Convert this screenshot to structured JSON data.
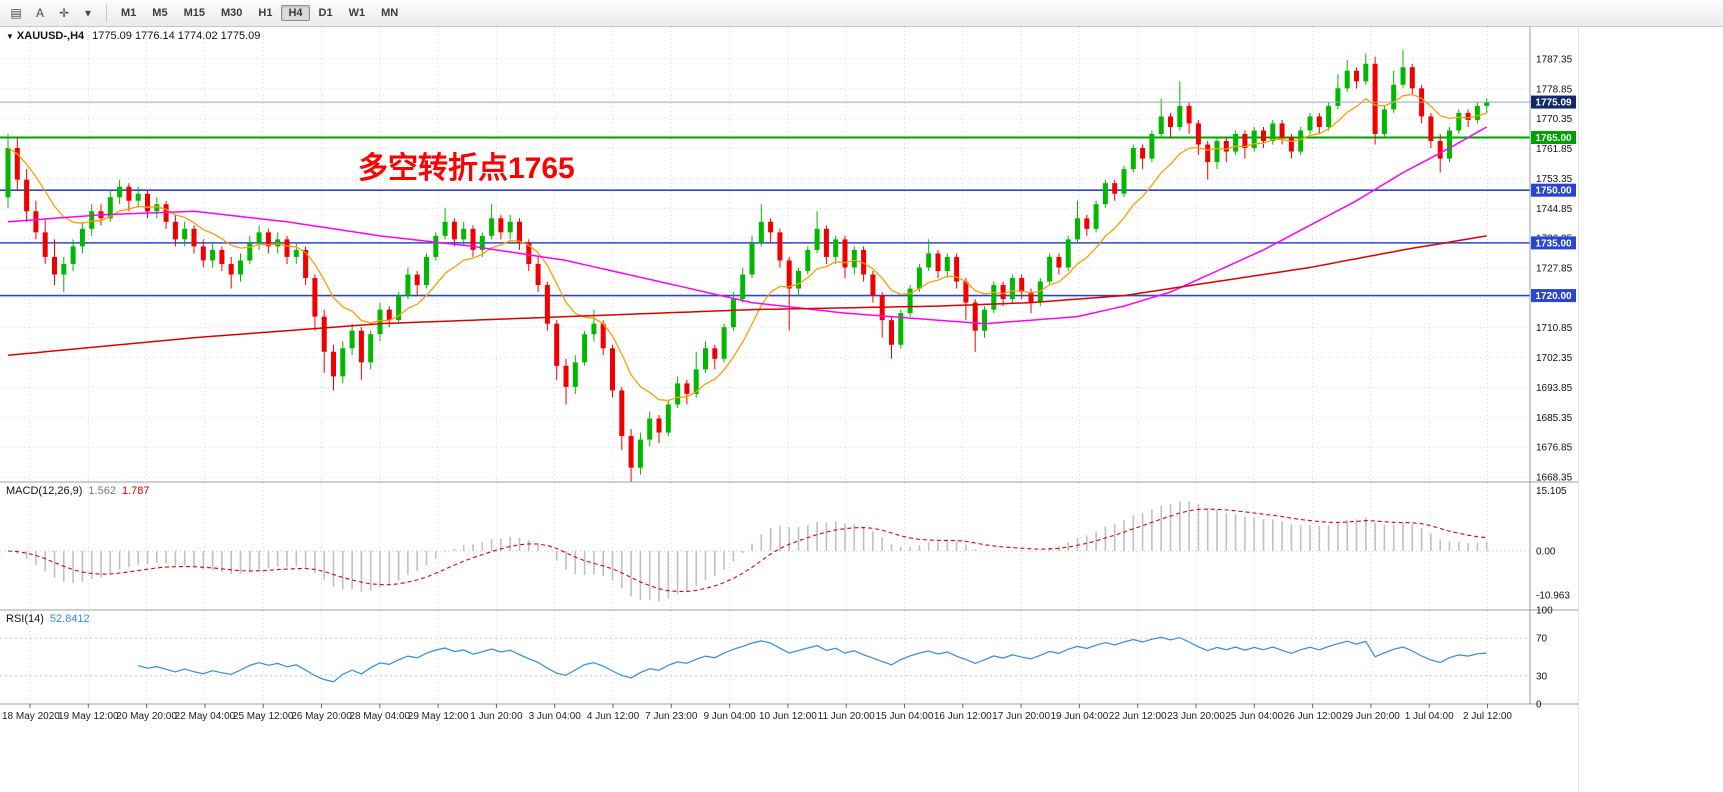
{
  "toolbar": {
    "tools": [
      {
        "name": "chart-tool",
        "glyph": "▤"
      },
      {
        "name": "text-tool",
        "glyph": "A"
      },
      {
        "name": "crosshair-tool",
        "glyph": "✛"
      },
      {
        "name": "tools-dropdown",
        "glyph": "▾"
      }
    ],
    "timeframes": [
      "M1",
      "M5",
      "M15",
      "M30",
      "H1",
      "H4",
      "D1",
      "W1",
      "MN"
    ],
    "active_timeframe": "H4"
  },
  "chart": {
    "symbol_dropdown_glyph": "▼",
    "symbol_title": "XAUUSD-,H4",
    "ohlc_text": "1775.09 1776.14 1774.02 1775.09",
    "annotation": "多空转折点1765",
    "price_axis": [
      "1787.35",
      "1778.85",
      "1770.35",
      "1761.85",
      "1753.35",
      "1744.85",
      "1736.35",
      "1727.85",
      "1719.35",
      "1710.85",
      "1702.35",
      "1693.85",
      "1685.35",
      "1676.85",
      "1668.35"
    ],
    "levels": [
      {
        "value": 1765.0,
        "label": "1765.00",
        "color": "#00a000",
        "width": 2
      },
      {
        "value": 1750.0,
        "label": "1750.00",
        "color": "#2946d2",
        "width": 1.6
      },
      {
        "value": 1735.0,
        "label": "1735.00",
        "color": "#2946d2",
        "width": 1.6
      },
      {
        "value": 1720.0,
        "label": "1720.00",
        "color": "#2946d2",
        "width": 1.6
      }
    ],
    "bid": {
      "value": 1775.09,
      "label": "1775.09",
      "line_color": "#8ea8d8",
      "tag_color": "#13286b"
    },
    "time_axis": [
      "18 May 2020",
      "19 May 12:00",
      "20 May 20:00",
      "22 May 04:00",
      "25 May 12:00",
      "26 May 20:00",
      "28 May 04:00",
      "29 May 12:00",
      "1 Jun 20:00",
      "3 Jun 04:00",
      "4 Jun 12:00",
      "7 Jun 23:00",
      "9 Jun 04:00",
      "10 Jun 12:00",
      "11 Jun 20:00",
      "15 Jun 04:00",
      "16 Jun 12:00",
      "17 Jun 20:00",
      "19 Jun 04:00",
      "22 Jun 12:00",
      "23 Jun 20:00",
      "25 Jun 04:00",
      "26 Jun 12:00",
      "29 Jun 20:00",
      "1 Jul 04:00",
      "2 Jul 12:00"
    ]
  },
  "macd": {
    "label": "MACD(12,26,9)",
    "value_main": "1.562",
    "value_signal": "1.787",
    "axis": [
      {
        "label": "15.105",
        "value": 15.105
      },
      {
        "label": "0.00",
        "value": 0
      },
      {
        "label": "-10.963",
        "value": -10.963
      }
    ]
  },
  "rsi": {
    "label": "RSI(14)",
    "value": "52.8412",
    "axis": [
      {
        "label": "100",
        "value": 100
      },
      {
        "label": "70",
        "value": 70
      },
      {
        "label": "30",
        "value": 30
      },
      {
        "label": "0",
        "value": 0
      }
    ]
  },
  "colors": {
    "up": "#00b800",
    "down": "#f20000",
    "ma_fast": "#ff9c00",
    "ma_mid": "#ff00ff",
    "ma_slow": "#dd0000",
    "macd_hist": "#c0c0c0",
    "macd_signal": "#e00000",
    "rsi_line": "#2f8de0",
    "grid": "#d9d9d9"
  },
  "chart_data": {
    "type": "candlestick",
    "symbol": "XAUUSD",
    "timeframe": "H4",
    "price_range_visible": [
      1668.35,
      1787.35
    ],
    "ohlc": [
      [
        1748,
        1766,
        1745,
        1762
      ],
      [
        1762,
        1765,
        1750,
        1753
      ],
      [
        1753,
        1756,
        1741,
        1744
      ],
      [
        1744,
        1747,
        1736,
        1738
      ],
      [
        1738,
        1742,
        1729,
        1731
      ],
      [
        1731,
        1736,
        1723,
        1726
      ],
      [
        1726,
        1731,
        1721,
        1729
      ],
      [
        1729,
        1736,
        1727,
        1734
      ],
      [
        1734,
        1741,
        1732,
        1739
      ],
      [
        1739,
        1746,
        1737,
        1744
      ],
      [
        1744,
        1746,
        1740,
        1742
      ],
      [
        1742,
        1750,
        1741,
        1748
      ],
      [
        1748,
        1753,
        1746,
        1751
      ],
      [
        1751,
        1752,
        1744,
        1747
      ],
      [
        1747,
        1751,
        1745,
        1749
      ],
      [
        1749,
        1750,
        1742,
        1744
      ],
      [
        1744,
        1748,
        1742,
        1746
      ],
      [
        1746,
        1747,
        1739,
        1741
      ],
      [
        1741,
        1743,
        1734,
        1736
      ],
      [
        1736,
        1741,
        1734,
        1739
      ],
      [
        1739,
        1740,
        1732,
        1734
      ],
      [
        1734,
        1736,
        1728,
        1730
      ],
      [
        1730,
        1735,
        1728,
        1733
      ],
      [
        1733,
        1734,
        1727,
        1729
      ],
      [
        1729,
        1731,
        1722,
        1726
      ],
      [
        1726,
        1732,
        1724,
        1730
      ],
      [
        1730,
        1737,
        1729,
        1735
      ],
      [
        1735,
        1740,
        1733,
        1738
      ],
      [
        1738,
        1739,
        1732,
        1734
      ],
      [
        1734,
        1738,
        1732,
        1736
      ],
      [
        1736,
        1737,
        1729,
        1731
      ],
      [
        1731,
        1735,
        1729,
        1733
      ],
      [
        1733,
        1734,
        1723,
        1725
      ],
      [
        1725,
        1726,
        1710,
        1714
      ],
      [
        1714,
        1716,
        1698,
        1704
      ],
      [
        1704,
        1706,
        1693,
        1697
      ],
      [
        1697,
        1707,
        1695,
        1705
      ],
      [
        1705,
        1712,
        1703,
        1710
      ],
      [
        1710,
        1711,
        1696,
        1701
      ],
      [
        1701,
        1710,
        1699,
        1709
      ],
      [
        1709,
        1718,
        1707,
        1716
      ],
      [
        1716,
        1717,
        1711,
        1713
      ],
      [
        1713,
        1721,
        1712,
        1720
      ],
      [
        1720,
        1728,
        1719,
        1726
      ],
      [
        1726,
        1727,
        1720,
        1723
      ],
      [
        1723,
        1732,
        1722,
        1731
      ],
      [
        1731,
        1738,
        1730,
        1737
      ],
      [
        1737,
        1745,
        1736,
        1741
      ],
      [
        1741,
        1742,
        1734,
        1736
      ],
      [
        1736,
        1741,
        1734,
        1739
      ],
      [
        1739,
        1740,
        1731,
        1733
      ],
      [
        1733,
        1738,
        1731,
        1737
      ],
      [
        1737,
        1746,
        1736,
        1742
      ],
      [
        1742,
        1743,
        1736,
        1738
      ],
      [
        1738,
        1743,
        1736,
        1741
      ],
      [
        1741,
        1742,
        1733,
        1735
      ],
      [
        1735,
        1736,
        1727,
        1729
      ],
      [
        1729,
        1731,
        1721,
        1723
      ],
      [
        1723,
        1724,
        1710,
        1712
      ],
      [
        1712,
        1713,
        1696,
        1700
      ],
      [
        1700,
        1702,
        1689,
        1694
      ],
      [
        1694,
        1703,
        1692,
        1701
      ],
      [
        1701,
        1710,
        1700,
        1709
      ],
      [
        1709,
        1716,
        1707,
        1712
      ],
      [
        1712,
        1713,
        1703,
        1705
      ],
      [
        1705,
        1706,
        1691,
        1693
      ],
      [
        1693,
        1694,
        1676,
        1680
      ],
      [
        1680,
        1682,
        1667,
        1671
      ],
      [
        1671,
        1681,
        1669,
        1679
      ],
      [
        1679,
        1687,
        1677,
        1685
      ],
      [
        1685,
        1686,
        1678,
        1681
      ],
      [
        1681,
        1690,
        1680,
        1689
      ],
      [
        1689,
        1697,
        1688,
        1695
      ],
      [
        1695,
        1696,
        1689,
        1692
      ],
      [
        1692,
        1704,
        1691,
        1699
      ],
      [
        1699,
        1707,
        1698,
        1705
      ],
      [
        1705,
        1706,
        1699,
        1702
      ],
      [
        1702,
        1712,
        1701,
        1711
      ],
      [
        1711,
        1721,
        1710,
        1719
      ],
      [
        1719,
        1728,
        1718,
        1726
      ],
      [
        1726,
        1737,
        1725,
        1735
      ],
      [
        1735,
        1746,
        1734,
        1741
      ],
      [
        1741,
        1742,
        1735,
        1738
      ],
      [
        1738,
        1739,
        1728,
        1730
      ],
      [
        1730,
        1731,
        1710,
        1722
      ],
      [
        1722,
        1728,
        1720,
        1727
      ],
      [
        1727,
        1734,
        1726,
        1733
      ],
      [
        1733,
        1744,
        1732,
        1739
      ],
      [
        1739,
        1740,
        1729,
        1731
      ],
      [
        1731,
        1737,
        1729,
        1736
      ],
      [
        1736,
        1737,
        1725,
        1728
      ],
      [
        1728,
        1734,
        1726,
        1733
      ],
      [
        1733,
        1734,
        1724,
        1726
      ],
      [
        1726,
        1727,
        1718,
        1720
      ],
      [
        1720,
        1721,
        1708,
        1713
      ],
      [
        1713,
        1714,
        1702,
        1706
      ],
      [
        1706,
        1716,
        1705,
        1715
      ],
      [
        1715,
        1723,
        1714,
        1722
      ],
      [
        1722,
        1729,
        1721,
        1728
      ],
      [
        1728,
        1736,
        1727,
        1732
      ],
      [
        1732,
        1733,
        1725,
        1727
      ],
      [
        1727,
        1732,
        1725,
        1731
      ],
      [
        1731,
        1732,
        1722,
        1724
      ],
      [
        1724,
        1725,
        1713,
        1718
      ],
      [
        1718,
        1719,
        1704,
        1710
      ],
      [
        1710,
        1717,
        1708,
        1716
      ],
      [
        1716,
        1724,
        1715,
        1723
      ],
      [
        1723,
        1724,
        1717,
        1719
      ],
      [
        1719,
        1726,
        1718,
        1725
      ],
      [
        1725,
        1726,
        1719,
        1721
      ],
      [
        1721,
        1722,
        1715,
        1718
      ],
      [
        1718,
        1725,
        1717,
        1724
      ],
      [
        1724,
        1732,
        1723,
        1731
      ],
      [
        1731,
        1732,
        1726,
        1728
      ],
      [
        1728,
        1737,
        1727,
        1736
      ],
      [
        1736,
        1747,
        1735,
        1742
      ],
      [
        1742,
        1743,
        1737,
        1739
      ],
      [
        1739,
        1747,
        1738,
        1746
      ],
      [
        1746,
        1753,
        1745,
        1752
      ],
      [
        1752,
        1753,
        1747,
        1749
      ],
      [
        1749,
        1757,
        1748,
        1756
      ],
      [
        1756,
        1763,
        1755,
        1762
      ],
      [
        1762,
        1763,
        1756,
        1759
      ],
      [
        1759,
        1767,
        1758,
        1766
      ],
      [
        1766,
        1776,
        1765,
        1771
      ],
      [
        1771,
        1772,
        1765,
        1768
      ],
      [
        1768,
        1781,
        1767,
        1774
      ],
      [
        1774,
        1775,
        1766,
        1769
      ],
      [
        1769,
        1770,
        1760,
        1763
      ],
      [
        1763,
        1764,
        1753,
        1758
      ],
      [
        1758,
        1765,
        1756,
        1764
      ],
      [
        1764,
        1765,
        1758,
        1761
      ],
      [
        1761,
        1767,
        1760,
        1766
      ],
      [
        1766,
        1767,
        1759,
        1762
      ],
      [
        1762,
        1768,
        1761,
        1767
      ],
      [
        1767,
        1768,
        1762,
        1764
      ],
      [
        1764,
        1770,
        1763,
        1769
      ],
      [
        1769,
        1770,
        1763,
        1765
      ],
      [
        1765,
        1766,
        1759,
        1761
      ],
      [
        1761,
        1768,
        1760,
        1767
      ],
      [
        1767,
        1772,
        1766,
        1771
      ],
      [
        1771,
        1772,
        1766,
        1768
      ],
      [
        1768,
        1775,
        1767,
        1774
      ],
      [
        1774,
        1783,
        1773,
        1779
      ],
      [
        1779,
        1787,
        1778,
        1784
      ],
      [
        1784,
        1785,
        1779,
        1781
      ],
      [
        1781,
        1789,
        1780,
        1786
      ],
      [
        1786,
        1788,
        1763,
        1766
      ],
      [
        1766,
        1774,
        1765,
        1773
      ],
      [
        1773,
        1784,
        1772,
        1780
      ],
      [
        1780,
        1790,
        1779,
        1785
      ],
      [
        1785,
        1786,
        1777,
        1779
      ],
      [
        1779,
        1780,
        1769,
        1771
      ],
      [
        1771,
        1772,
        1762,
        1764
      ],
      [
        1764,
        1766,
        1755,
        1759
      ],
      [
        1759,
        1768,
        1758,
        1767
      ],
      [
        1767,
        1773,
        1766,
        1772
      ],
      [
        1772,
        1773,
        1768,
        1770
      ],
      [
        1770,
        1775,
        1769,
        1774
      ],
      [
        1774,
        1776.1,
        1772,
        1775.1
      ]
    ],
    "overlays": {
      "ema_fast_period": 10,
      "magenta_anchors": [
        [
          0,
          1741
        ],
        [
          10,
          1743
        ],
        [
          20,
          1744
        ],
        [
          30,
          1741
        ],
        [
          40,
          1737
        ],
        [
          50,
          1734
        ],
        [
          60,
          1730
        ],
        [
          70,
          1724
        ],
        [
          80,
          1718
        ],
        [
          90,
          1715
        ],
        [
          100,
          1713
        ],
        [
          105,
          1712
        ],
        [
          110,
          1713
        ],
        [
          115,
          1714
        ],
        [
          120,
          1717
        ],
        [
          125,
          1721
        ],
        [
          130,
          1727
        ],
        [
          135,
          1733
        ],
        [
          140,
          1740
        ],
        [
          145,
          1747
        ],
        [
          150,
          1755
        ],
        [
          155,
          1762
        ],
        [
          159,
          1768
        ]
      ],
      "red_anchors": [
        [
          0,
          1703
        ],
        [
          20,
          1708
        ],
        [
          40,
          1712
        ],
        [
          60,
          1714
        ],
        [
          80,
          1716
        ],
        [
          100,
          1717
        ],
        [
          110,
          1718
        ],
        [
          120,
          1720
        ],
        [
          130,
          1724
        ],
        [
          140,
          1728
        ],
        [
          150,
          1733
        ],
        [
          159,
          1737
        ]
      ]
    },
    "indicators": {
      "macd": {
        "fast": 12,
        "slow": 26,
        "signal": 9
      },
      "rsi": {
        "period": 14
      }
    }
  }
}
